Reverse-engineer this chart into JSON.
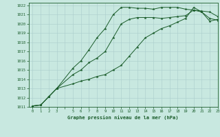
{
  "title": "Graphe pression niveau de la mer (hPa)",
  "bg_color": "#c8e8e0",
  "grid_color": "#aacccc",
  "line_color": "#1a5c2a",
  "xlim": [
    -0.5,
    23
  ],
  "ylim": [
    1011,
    1022.3
  ],
  "xtick_labels": [
    "0",
    "1",
    "2",
    "3",
    "",
    "5",
    "6",
    "7",
    "8",
    "9",
    "10",
    "11",
    "12",
    "13",
    "14",
    "15",
    "16",
    "17",
    "18",
    "19",
    "20",
    "21",
    "22",
    "23"
  ],
  "xtick_positions": [
    0,
    1,
    2,
    3,
    4,
    5,
    6,
    7,
    8,
    9,
    10,
    11,
    12,
    13,
    14,
    15,
    16,
    17,
    18,
    19,
    20,
    21,
    22,
    23
  ],
  "ytick_positions": [
    1011,
    1012,
    1013,
    1014,
    1015,
    1016,
    1017,
    1018,
    1019,
    1020,
    1021,
    1022
  ],
  "series": [
    {
      "x": [
        0,
        1,
        2,
        3,
        5,
        6,
        7,
        8,
        9,
        10,
        11,
        12,
        13,
        14,
        15,
        16,
        17,
        18,
        19,
        20,
        21,
        22,
        23
      ],
      "y": [
        1011.1,
        1011.2,
        1012.1,
        1013.0,
        1015.2,
        1016.0,
        1017.2,
        1018.5,
        1019.5,
        1021.0,
        1021.8,
        1021.8,
        1021.7,
        1021.7,
        1021.6,
        1021.8,
        1021.8,
        1021.8,
        1021.6,
        1021.5,
        1021.4,
        1021.3,
        1020.8
      ]
    },
    {
      "x": [
        0,
        1,
        2,
        3,
        5,
        6,
        7,
        8,
        9,
        10,
        11,
        12,
        13,
        14,
        15,
        16,
        17,
        18,
        19,
        20,
        21,
        22,
        23
      ],
      "y": [
        1011.1,
        1011.2,
        1012.1,
        1013.0,
        1014.5,
        1015.0,
        1015.8,
        1016.3,
        1017.0,
        1018.5,
        1020.0,
        1020.5,
        1020.7,
        1020.7,
        1020.7,
        1020.6,
        1020.7,
        1020.8,
        1020.9,
        1021.5,
        1021.3,
        1020.6,
        1020.4
      ]
    },
    {
      "x": [
        0,
        1,
        2,
        3,
        5,
        6,
        7,
        8,
        9,
        10,
        11,
        12,
        13,
        14,
        15,
        16,
        17,
        18,
        19,
        20,
        21,
        22,
        23
      ],
      "y": [
        1011.1,
        1011.2,
        1012.1,
        1013.0,
        1013.5,
        1013.8,
        1014.0,
        1014.3,
        1014.5,
        1015.0,
        1015.5,
        1016.5,
        1017.5,
        1018.5,
        1019.0,
        1019.5,
        1019.8,
        1020.2,
        1020.6,
        1021.8,
        1021.3,
        1020.3,
        1020.5
      ]
    }
  ]
}
